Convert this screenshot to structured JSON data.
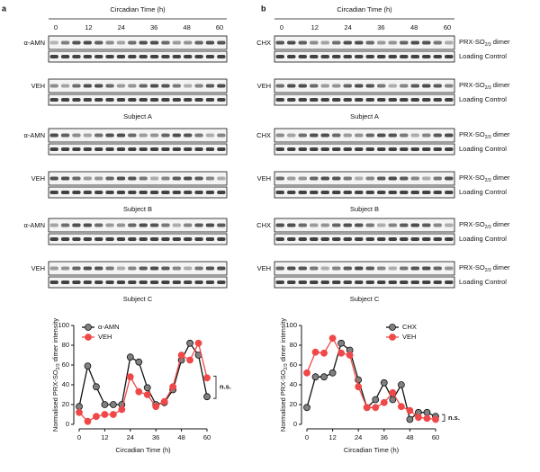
{
  "blot_panels": [
    {
      "label": "a",
      "time_label": "Circadian Time (h)",
      "time_ticks": [
        0,
        12,
        24,
        36,
        48,
        60
      ],
      "subjects": [
        {
          "name": "Subject A",
          "rows": [
            "α-AMN",
            "VEH"
          ]
        },
        {
          "name": "Subject B",
          "rows": [
            "α-AMN",
            "VEH"
          ]
        },
        {
          "name": "Subject C",
          "rows": [
            "α-AMN",
            "VEH"
          ]
        }
      ]
    },
    {
      "label": "b",
      "time_label": "Circadian Time (h)",
      "time_ticks": [
        0,
        12,
        24,
        36,
        48,
        60
      ],
      "band_label": {
        "base": "PRX-SO",
        "sub": "2/3",
        "rest": " dimer"
      },
      "control_label": "Loading Control",
      "subjects": [
        {
          "name": "Subject A",
          "rows": [
            "CHX",
            "VEH"
          ]
        },
        {
          "name": "Subject B",
          "rows": [
            "CHX",
            "VEH"
          ]
        },
        {
          "name": "Subject C",
          "rows": [
            "CHX",
            "VEH"
          ]
        }
      ]
    }
  ],
  "chart_data": [
    {
      "type": "line",
      "xlabel": "Circadian Time (h)",
      "ylabel": {
        "base": "Normalised PRX-SO",
        "sub": "2/3",
        "rest": " dimer intensity"
      },
      "x": [
        0,
        4,
        8,
        12,
        16,
        20,
        24,
        28,
        32,
        36,
        40,
        44,
        48,
        52,
        56,
        60
      ],
      "series": [
        {
          "name": "α-AMN",
          "color": "#808080",
          "line_color": "#111111",
          "values": [
            18,
            59,
            38,
            20,
            20,
            20,
            68,
            63,
            37,
            20,
            22,
            35,
            65,
            82,
            70,
            28
          ]
        },
        {
          "name": "VEH",
          "color": "#f04848",
          "line_color": "#f04848",
          "values": [
            12,
            3,
            8,
            10,
            10,
            15,
            48,
            33,
            30,
            18,
            23,
            38,
            70,
            65,
            82,
            47
          ]
        }
      ],
      "xlim": [
        0,
        60
      ],
      "xticks": [
        0,
        12,
        24,
        36,
        48,
        60
      ],
      "ylim": [
        0,
        100
      ],
      "yticks": [
        0,
        20,
        40,
        60,
        80,
        100
      ],
      "legend": "upper left",
      "annotation": "n.s."
    },
    {
      "type": "line",
      "xlabel": "Circadian Time (h)",
      "ylabel": {
        "base": "Normalised PRX-SO",
        "sub": "2/3",
        "rest": " dimer intensity"
      },
      "x": [
        0,
        4,
        8,
        12,
        16,
        20,
        24,
        28,
        32,
        36,
        40,
        44,
        48,
        52,
        56,
        60
      ],
      "series": [
        {
          "name": "CHX",
          "color": "#808080",
          "line_color": "#111111",
          "values": [
            17,
            48,
            48,
            52,
            82,
            75,
            45,
            17,
            25,
            42,
            25,
            40,
            5,
            12,
            12,
            8
          ]
        },
        {
          "name": "VEH",
          "color": "#f04848",
          "line_color": "#f04848",
          "values": [
            52,
            73,
            72,
            87,
            72,
            70,
            38,
            17,
            17,
            22,
            32,
            18,
            14,
            7,
            6,
            5
          ]
        }
      ],
      "xlim": [
        0,
        60
      ],
      "xticks": [
        0,
        12,
        24,
        36,
        48,
        60
      ],
      "ylim": [
        0,
        100
      ],
      "yticks": [
        0,
        20,
        40,
        60,
        80,
        100
      ],
      "legend": "upper right",
      "annotation": "n.s."
    }
  ]
}
